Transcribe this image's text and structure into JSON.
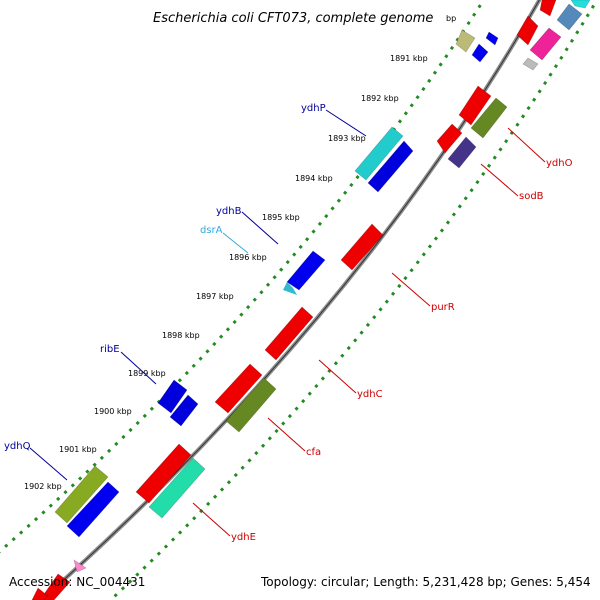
{
  "title": "Escherichia coli CFT073, complete genome",
  "accession": "Accession: NC_004431",
  "topology": "Topology: circular; Length: 5,231,428 bp; Genes: 5,454",
  "colors": {
    "backbone": "#8c8c8c",
    "tick_dots": "#228B22",
    "label_red": "#cc0000",
    "label_blue": "#000099",
    "label_cyan": "#33aadd"
  },
  "ticks": [
    {
      "label": "bp"
    },
    {
      "label": "1891 kbp"
    },
    {
      "label": "1892 kbp"
    },
    {
      "label": "1893 kbp"
    },
    {
      "label": "1894 kbp"
    },
    {
      "label": "1895 kbp"
    },
    {
      "label": "1896 kbp"
    },
    {
      "label": "1897 kbp"
    },
    {
      "label": "1898 kbp"
    },
    {
      "label": "1899 kbp"
    },
    {
      "label": "1900 kbp"
    },
    {
      "label": "1901 kbp"
    },
    {
      "label": "1902 kbp"
    }
  ],
  "gene_labels": [
    {
      "name": "ydhP",
      "color": "#000099"
    },
    {
      "name": "ydhB",
      "color": "#000099"
    },
    {
      "name": "dsrA",
      "color": "#33aadd"
    },
    {
      "name": "ribE",
      "color": "#000099"
    },
    {
      "name": "ydhQ",
      "color": "#000099"
    },
    {
      "name": "ydhO",
      "color": "#cc0000"
    },
    {
      "name": "sodB",
      "color": "#cc0000"
    },
    {
      "name": "purR",
      "color": "#cc0000"
    },
    {
      "name": "ydhC",
      "color": "#cc0000"
    },
    {
      "name": "cfa",
      "color": "#cc0000"
    },
    {
      "name": "ydhE",
      "color": "#cc0000"
    }
  ],
  "features": [
    {
      "name": "feature-khaki",
      "color": "#bbbb77"
    },
    {
      "name": "feature-blue-small",
      "color": "#0000ee"
    },
    {
      "name": "feature-cyan-ydhP",
      "color": "#22cccc"
    },
    {
      "name": "feature-blue-ydhP",
      "color": "#0000dd"
    },
    {
      "name": "feature-blue-ydhB",
      "color": "#0000ee"
    },
    {
      "name": "feature-blue-ribE-1",
      "color": "#0000dd"
    },
    {
      "name": "feature-blue-ribE-2",
      "color": "#0000dd"
    },
    {
      "name": "feature-olive-ydhQ",
      "color": "#88aa22"
    },
    {
      "name": "feature-blue-ydhQ",
      "color": "#0000ee"
    },
    {
      "name": "feature-red-ydhO",
      "color": "#ee0000"
    },
    {
      "name": "feature-olive-ydhO",
      "color": "#668822"
    },
    {
      "name": "feature-red-sodB",
      "color": "#ee0000"
    },
    {
      "name": "feature-purple-sodB",
      "color": "#443388"
    },
    {
      "name": "feature-red-purR",
      "color": "#ee0000"
    },
    {
      "name": "feature-red-ydhC",
      "color": "#ee0000"
    },
    {
      "name": "feature-red-cfa",
      "color": "#ee0000"
    },
    {
      "name": "feature-olive-cfa",
      "color": "#668822"
    },
    {
      "name": "feature-red-ydhE",
      "color": "#ee0000"
    },
    {
      "name": "feature-teal-ydhE",
      "color": "#22ddaa"
    },
    {
      "name": "feature-red-top",
      "color": "#ee0000"
    },
    {
      "name": "feature-magenta-top",
      "color": "#ee2299"
    },
    {
      "name": "feature-steel-top",
      "color": "#5588bb"
    },
    {
      "name": "feature-cyan-top",
      "color": "#22dddd"
    },
    {
      "name": "feature-gray-top",
      "color": "#bbbbbb"
    },
    {
      "name": "feature-pink-bottom",
      "color": "#ff88cc"
    },
    {
      "name": "feature-red-bottom",
      "color": "#ee0000"
    }
  ]
}
